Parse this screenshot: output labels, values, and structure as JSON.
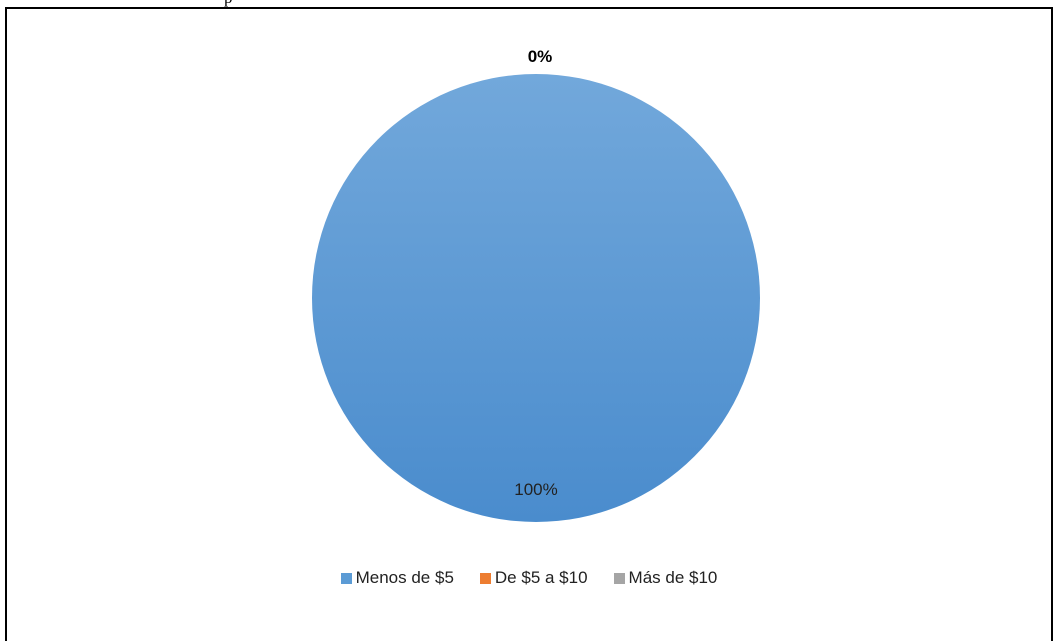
{
  "top_fragment": "p",
  "chart_data": {
    "type": "pie",
    "categories": [
      "Menos de $5",
      "De $5 a $10",
      "Más de $10"
    ],
    "values": [
      100,
      0,
      0
    ],
    "data_labels": [
      "100%",
      "0%",
      ""
    ],
    "colors": [
      "#5b9bd5",
      "#ed7d31",
      "#a5a5a5"
    ],
    "legend_position": "bottom"
  }
}
